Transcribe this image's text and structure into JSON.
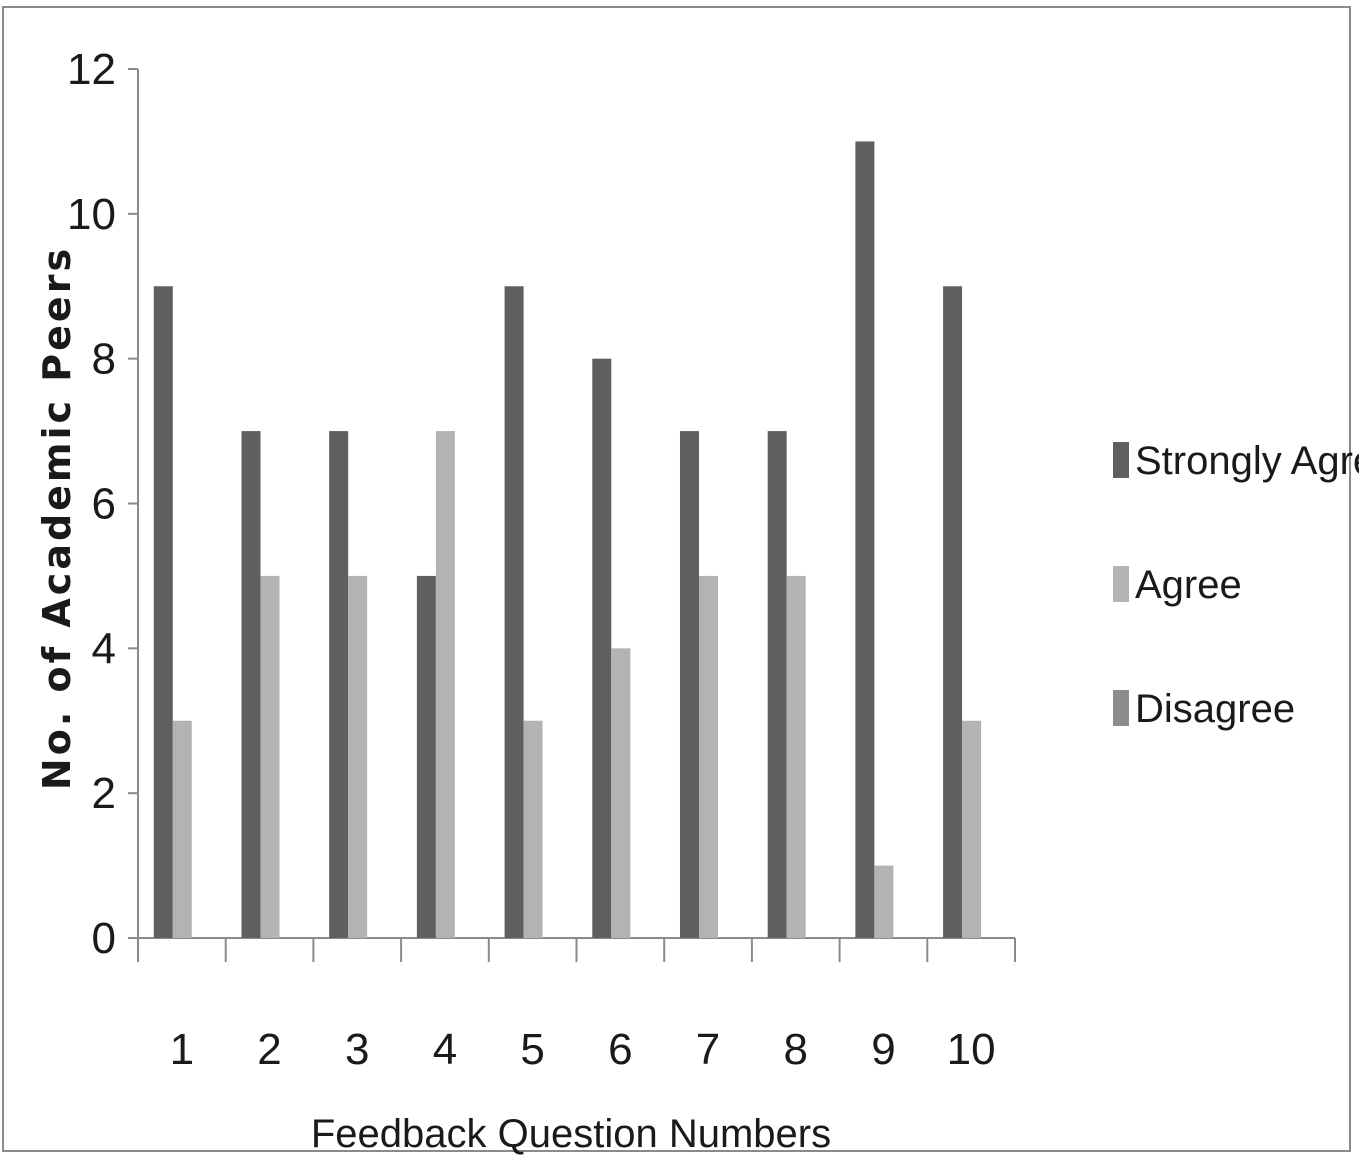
{
  "chart_data": {
    "type": "bar",
    "title": "",
    "xlabel": "Feedback Question Numbers",
    "ylabel": "No. of Academic Peers",
    "ylim": [
      0,
      12
    ],
    "yticks": [
      "0",
      "2",
      "4",
      "6",
      "8",
      "10",
      "12"
    ],
    "categories": [
      "1",
      "2",
      "3",
      "4",
      "5",
      "6",
      "7",
      "8",
      "9",
      "10"
    ],
    "series": [
      {
        "name": "Strongly Agree",
        "color": "#5f5f5f",
        "values": [
          9,
          7,
          7,
          5,
          9,
          8,
          7,
          7,
          11,
          9
        ]
      },
      {
        "name": "Agree",
        "color": "#b3b3b3",
        "values": [
          3,
          5,
          5,
          7,
          3,
          4,
          5,
          5,
          1,
          3
        ]
      },
      {
        "name": "Disagree",
        "color": "#8c8c8c",
        "values": [
          0,
          0,
          0,
          0,
          0,
          0,
          0,
          0,
          0,
          0
        ]
      }
    ],
    "legend_position": "right",
    "grid": false
  }
}
